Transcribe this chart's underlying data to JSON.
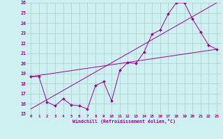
{
  "xlabel": "Windchill (Refroidissement éolien,°C)",
  "background_color": "#cff0f0",
  "grid_color": "#aacccc",
  "line_color": "#990099",
  "ylim": [
    15,
    26
  ],
  "xlim": [
    -0.5,
    23.5
  ],
  "yticks": [
    15,
    16,
    17,
    18,
    19,
    20,
    21,
    22,
    23,
    24,
    25,
    26
  ],
  "xticks": [
    0,
    1,
    2,
    3,
    4,
    5,
    6,
    7,
    8,
    9,
    10,
    11,
    12,
    13,
    14,
    15,
    16,
    17,
    18,
    19,
    20,
    21,
    22,
    23
  ],
  "line1_x": [
    0,
    1,
    2,
    3,
    4,
    5,
    6,
    7,
    8,
    9,
    10,
    11,
    12,
    13,
    14,
    15,
    16,
    17,
    18,
    19,
    20,
    21,
    22,
    23
  ],
  "line1_y": [
    18.7,
    18.7,
    16.2,
    15.8,
    16.5,
    15.9,
    15.8,
    15.5,
    17.8,
    18.2,
    16.3,
    19.3,
    20.1,
    20.0,
    21.1,
    22.9,
    23.3,
    24.9,
    26.0,
    26.0,
    24.4,
    23.1,
    21.8,
    21.4
  ],
  "line2_x": [
    0,
    23
  ],
  "line2_y": [
    18.7,
    21.4
  ],
  "line3_x": [
    0,
    23
  ],
  "line3_y": [
    15.5,
    26.0
  ]
}
